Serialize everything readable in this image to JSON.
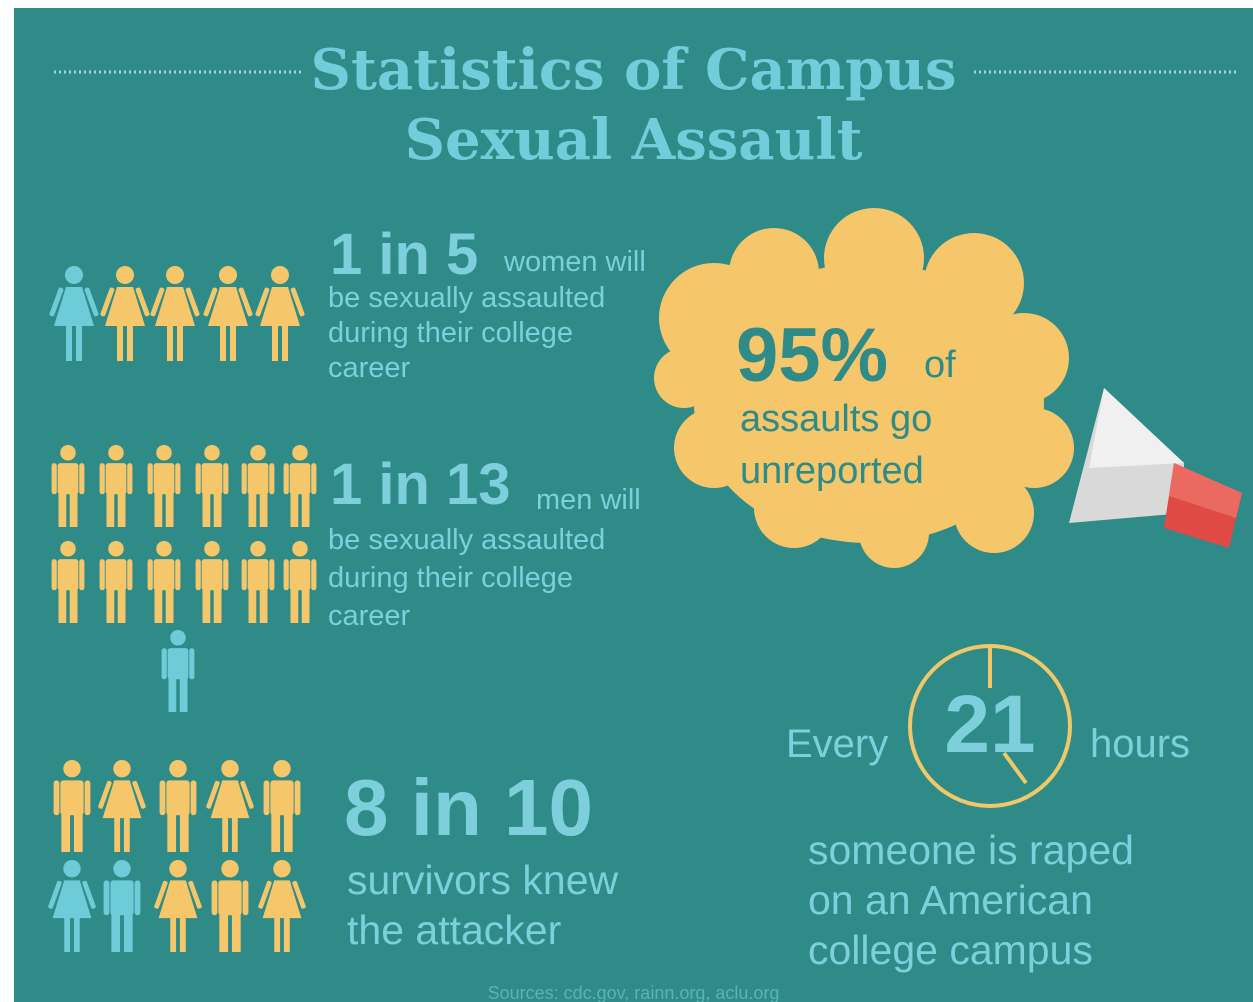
{
  "header": {
    "title": [
      "Statistics of Campus",
      "Sexual Assault"
    ]
  },
  "stats": [
    {
      "figure": "1 in 5",
      "lead": "women will",
      "lines": [
        "be sexually assaulted",
        "during their college",
        "career"
      ]
    },
    {
      "figure": "1 in 13",
      "lead": "men will",
      "lines": [
        "be sexually assaulted",
        "during their college",
        "career"
      ]
    },
    {
      "figure": "8 in 10",
      "lines": [
        "survivors knew",
        "the attacker"
      ]
    }
  ],
  "callout": {
    "figure": "95%",
    "lead": "of",
    "lines": [
      "assaults go",
      "unreported"
    ]
  },
  "clock": {
    "before": "Every",
    "figure": "21",
    "after": "hours",
    "lines": [
      "someone is raped",
      "on an American",
      "college campus"
    ]
  },
  "footer": {
    "sources": "Sources: cdc.gov, rainn.org, aclu.org"
  }
}
